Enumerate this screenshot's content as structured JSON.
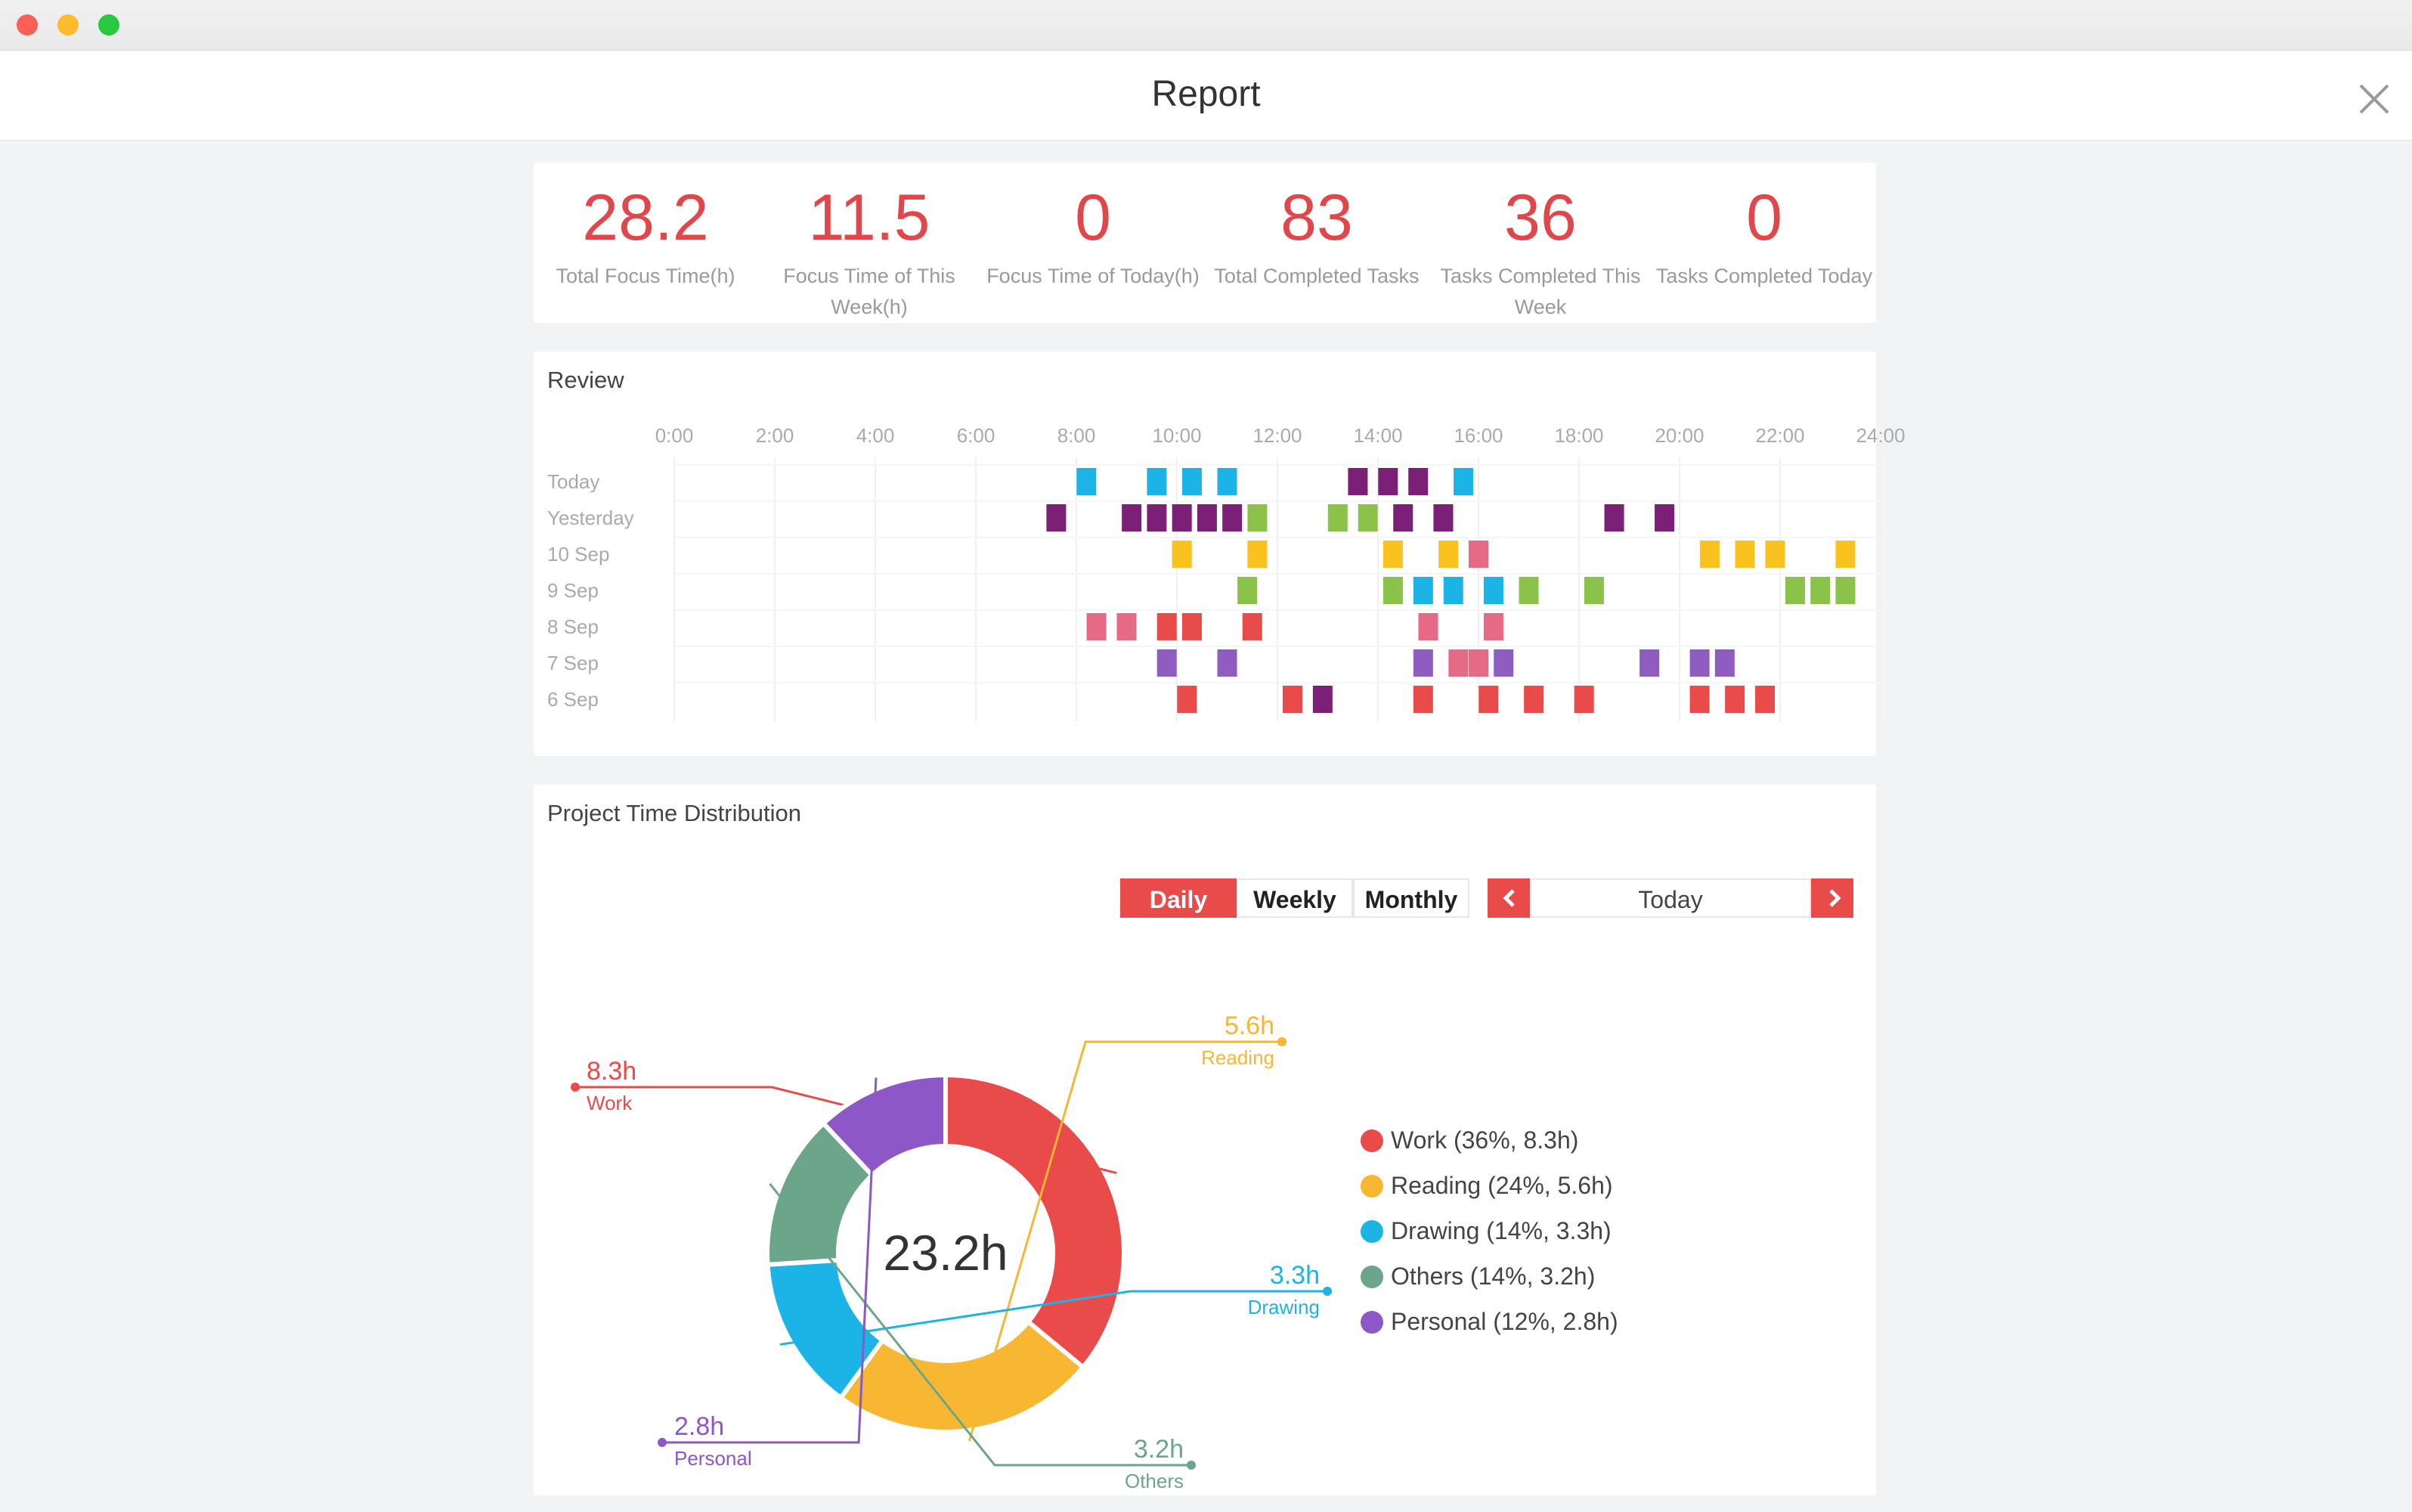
{
  "window": {
    "title": "Report"
  },
  "stats": [
    {
      "value": "28.2",
      "label": "Total Focus Time(h)"
    },
    {
      "value": "11.5",
      "label": "Focus Time of This Week(h)"
    },
    {
      "value": "0",
      "label": "Focus Time of Today(h)"
    },
    {
      "value": "83",
      "label": "Total Completed Tasks"
    },
    {
      "value": "36",
      "label": "Tasks Completed This Week"
    },
    {
      "value": "0",
      "label": "Tasks Completed Today"
    }
  ],
  "review": {
    "title": "Review",
    "hours": [
      "0:00",
      "2:00",
      "4:00",
      "6:00",
      "8:00",
      "10:00",
      "12:00",
      "14:00",
      "16:00",
      "18:00",
      "20:00",
      "22:00",
      "24:00"
    ],
    "days": [
      "Today",
      "Yesterday",
      "10 Sep",
      "9 Sep",
      "8 Sep",
      "7 Sep",
      "6 Sep"
    ],
    "colors": {
      "work": "#e94b4a",
      "reading": "#f9c21f",
      "drawing": "#1cb4e6",
      "others": "#8bc34a",
      "personal": "#7b1f77",
      "pink": "#e66a86",
      "lavender": "#8f5cc2"
    },
    "blocks": [
      {
        "day": 0,
        "h": [
          8.2
        ],
        "c": "drawing"
      },
      {
        "day": 0,
        "h": [
          9.6,
          10.3,
          11.0
        ],
        "c": "drawing"
      },
      {
        "day": 0,
        "h": [
          13.6,
          14.2,
          14.8
        ],
        "c": "personal"
      },
      {
        "day": 0,
        "h": [
          15.7
        ],
        "c": "drawing"
      },
      {
        "day": 1,
        "h": [
          7.6,
          9.1,
          9.6,
          10.1,
          10.6,
          11.1
        ],
        "c": "personal"
      },
      {
        "day": 1,
        "h": [
          11.6
        ],
        "c": "others"
      },
      {
        "day": 1,
        "h": [
          13.2,
          13.8
        ],
        "c": "others"
      },
      {
        "day": 1,
        "h": [
          14.5,
          15.3
        ],
        "c": "personal"
      },
      {
        "day": 1,
        "h": [
          18.7,
          19.7
        ],
        "c": "personal"
      },
      {
        "day": 2,
        "h": [
          10.1,
          11.6,
          14.3,
          15.4,
          20.6,
          21.3,
          21.9,
          23.3
        ],
        "c": "reading"
      },
      {
        "day": 2,
        "h": [
          16.0
        ],
        "c": "pink"
      },
      {
        "day": 3,
        "h": [
          11.4,
          14.3,
          18.3,
          22.3,
          22.8,
          23.3
        ],
        "c": "others"
      },
      {
        "day": 3,
        "h": [
          14.9,
          15.5,
          16.3
        ],
        "c": "drawing"
      },
      {
        "day": 3,
        "h": [
          17.0
        ],
        "c": "others"
      },
      {
        "day": 4,
        "h": [
          8.4,
          9.0
        ],
        "c": "pink"
      },
      {
        "day": 4,
        "h": [
          9.8,
          10.3,
          11.5
        ],
        "c": "work"
      },
      {
        "day": 4,
        "h": [
          15.0,
          16.3
        ],
        "c": "pink"
      },
      {
        "day": 5,
        "h": [
          9.8,
          11.0,
          14.9,
          16.5,
          19.4,
          20.4,
          20.9
        ],
        "c": "lavender"
      },
      {
        "day": 5,
        "h": [
          15.6,
          16.0
        ],
        "c": "pink"
      },
      {
        "day": 6,
        "h": [
          10.2,
          12.3,
          14.9,
          16.2,
          17.1,
          18.1,
          20.4,
          21.1,
          21.7
        ],
        "c": "work"
      },
      {
        "day": 6,
        "h": [
          12.9
        ],
        "c": "personal"
      }
    ]
  },
  "distribution": {
    "title": "Project Time Distribution",
    "tabs": [
      "Daily",
      "Weekly",
      "Monthly"
    ],
    "active_tab": "Daily",
    "period": "Today",
    "total": "23.2h",
    "chart_data": {
      "type": "pie",
      "title": "Project Time Distribution",
      "center_label": "23.2h",
      "slices": [
        {
          "name": "Work",
          "percent": 36,
          "hours": 8.3,
          "color": "#e94b4a",
          "legend": "Work (36%, 8.3h)",
          "value_label": "8.3h"
        },
        {
          "name": "Reading",
          "percent": 24,
          "hours": 5.6,
          "color": "#f7b733",
          "legend": "Reading (24%, 5.6h)",
          "value_label": "5.6h"
        },
        {
          "name": "Drawing",
          "percent": 14,
          "hours": 3.3,
          "color": "#1cb4e6",
          "legend": "Drawing (14%, 3.3h)",
          "value_label": "3.3h"
        },
        {
          "name": "Others",
          "percent": 14,
          "hours": 3.2,
          "color": "#6ba68a",
          "legend": "Others (14%, 3.2h)",
          "value_label": "3.2h"
        },
        {
          "name": "Personal",
          "percent": 12,
          "hours": 2.8,
          "color": "#8e57c8",
          "legend": "Personal (12%, 2.8h)",
          "value_label": "2.8h"
        }
      ]
    }
  }
}
